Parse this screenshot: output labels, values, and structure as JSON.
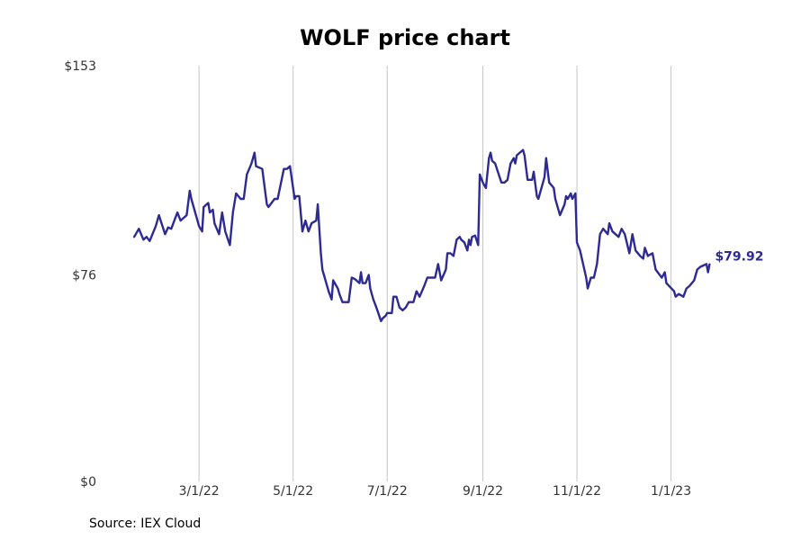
{
  "chart_data": {
    "type": "line",
    "title": "WOLF price chart",
    "ylim": [
      0,
      153
    ],
    "y_ticks": [
      0,
      76,
      153
    ],
    "y_tick_labels": [
      "$0",
      "$76",
      "$153"
    ],
    "x_tick_dates": [
      "2022-03-01",
      "2022-05-01",
      "2022-07-01",
      "2022-09-01",
      "2022-11-01",
      "2023-01-01"
    ],
    "x_tick_labels": [
      "3/1/22",
      "5/1/22",
      "7/1/22",
      "9/1/22",
      "11/1/22",
      "1/1/23"
    ],
    "xlim": [
      "2022-01-01",
      "2023-02-28"
    ],
    "grid": "vertical",
    "line_color": "#2e2a94",
    "last_value_label": "$79.92",
    "series": [
      {
        "values": [
          [
            "2022-01-18",
            90.0
          ],
          [
            "2022-01-21",
            93.0
          ],
          [
            "2022-01-24",
            89.0
          ],
          [
            "2022-01-26",
            90.0
          ],
          [
            "2022-01-28",
            88.5
          ],
          [
            "2022-02-01",
            94.0
          ],
          [
            "2022-02-03",
            98.0
          ],
          [
            "2022-02-07",
            91.0
          ],
          [
            "2022-02-09",
            93.5
          ],
          [
            "2022-02-11",
            93.0
          ],
          [
            "2022-02-15",
            99.0
          ],
          [
            "2022-02-17",
            96.0
          ],
          [
            "2022-02-21",
            98.0
          ],
          [
            "2022-02-23",
            107.0
          ],
          [
            "2022-02-24",
            104.0
          ],
          [
            "2022-02-28",
            96.0
          ],
          [
            "2022-03-01",
            94.0
          ],
          [
            "2022-03-03",
            92.0
          ],
          [
            "2022-03-04",
            101.0
          ],
          [
            "2022-03-07",
            102.5
          ],
          [
            "2022-03-08",
            99.0
          ],
          [
            "2022-03-10",
            100.0
          ],
          [
            "2022-03-11",
            95.0
          ],
          [
            "2022-03-14",
            91.0
          ],
          [
            "2022-03-16",
            99.0
          ],
          [
            "2022-03-18",
            92.0
          ],
          [
            "2022-03-21",
            87.0
          ],
          [
            "2022-03-23",
            99.0
          ],
          [
            "2022-03-25",
            106.0
          ],
          [
            "2022-03-28",
            104.0
          ],
          [
            "2022-03-30",
            104.0
          ],
          [
            "2022-04-01",
            113.0
          ],
          [
            "2022-04-04",
            117.0
          ],
          [
            "2022-04-06",
            121.0
          ],
          [
            "2022-04-07",
            116.0
          ],
          [
            "2022-04-11",
            115.0
          ],
          [
            "2022-04-14",
            102.0
          ],
          [
            "2022-04-15",
            101.0
          ],
          [
            "2022-04-19",
            104.0
          ],
          [
            "2022-04-21",
            104.0
          ],
          [
            "2022-04-25",
            115.0
          ],
          [
            "2022-04-27",
            115.0
          ],
          [
            "2022-04-29",
            116.0
          ],
          [
            "2022-05-02",
            104.0
          ],
          [
            "2022-05-03",
            105.0
          ],
          [
            "2022-05-05",
            105.0
          ],
          [
            "2022-05-07",
            92.0
          ],
          [
            "2022-05-09",
            96.0
          ],
          [
            "2022-05-11",
            92.0
          ],
          [
            "2022-05-13",
            95.0
          ],
          [
            "2022-05-16",
            96.0
          ],
          [
            "2022-05-17",
            102.0
          ],
          [
            "2022-05-19",
            84.0
          ],
          [
            "2022-05-20",
            78.0
          ],
          [
            "2022-05-24",
            70.0
          ],
          [
            "2022-05-26",
            67.0
          ],
          [
            "2022-05-27",
            74.0
          ],
          [
            "2022-05-30",
            71.0
          ],
          [
            "2022-05-31",
            69.0
          ],
          [
            "2022-06-02",
            66.0
          ],
          [
            "2022-06-06",
            66.0
          ],
          [
            "2022-06-08",
            75.0
          ],
          [
            "2022-06-10",
            74.5
          ],
          [
            "2022-06-13",
            73.0
          ],
          [
            "2022-06-14",
            77.0
          ],
          [
            "2022-06-15",
            73.0
          ],
          [
            "2022-06-17",
            73.0
          ],
          [
            "2022-06-19",
            76.0
          ],
          [
            "2022-06-20",
            71.0
          ],
          [
            "2022-06-22",
            67.0
          ],
          [
            "2022-06-24",
            64.0
          ],
          [
            "2022-06-27",
            59.0
          ],
          [
            "2022-06-28",
            60.0
          ],
          [
            "2022-06-30",
            61.0
          ],
          [
            "2022-07-01",
            62.0
          ],
          [
            "2022-07-04",
            62.0
          ],
          [
            "2022-07-05",
            68.0
          ],
          [
            "2022-07-07",
            68.0
          ],
          [
            "2022-07-09",
            64.0
          ],
          [
            "2022-07-11",
            63.0
          ],
          [
            "2022-07-13",
            64.0
          ],
          [
            "2022-07-15",
            66.0
          ],
          [
            "2022-07-18",
            66.0
          ],
          [
            "2022-07-20",
            70.0
          ],
          [
            "2022-07-22",
            68.0
          ],
          [
            "2022-07-25",
            72.0
          ],
          [
            "2022-07-27",
            75.0
          ],
          [
            "2022-07-29",
            75.0
          ],
          [
            "2022-08-01",
            75.0
          ],
          [
            "2022-08-03",
            80.0
          ],
          [
            "2022-08-05",
            74.0
          ],
          [
            "2022-08-08",
            78.0
          ],
          [
            "2022-08-09",
            84.0
          ],
          [
            "2022-08-11",
            84.0
          ],
          [
            "2022-08-13",
            83.0
          ],
          [
            "2022-08-15",
            89.0
          ],
          [
            "2022-08-17",
            90.0
          ],
          [
            "2022-08-18",
            89.0
          ],
          [
            "2022-08-20",
            88.0
          ],
          [
            "2022-08-22",
            85.0
          ],
          [
            "2022-08-23",
            89.0
          ],
          [
            "2022-08-24",
            87.0
          ],
          [
            "2022-08-25",
            90.0
          ],
          [
            "2022-08-27",
            90.5
          ],
          [
            "2022-08-29",
            87.0
          ],
          [
            "2022-08-30",
            113.0
          ],
          [
            "2022-09-01",
            110.0
          ],
          [
            "2022-09-03",
            108.0
          ],
          [
            "2022-09-05",
            119.0
          ],
          [
            "2022-09-06",
            121.0
          ],
          [
            "2022-09-07",
            118.0
          ],
          [
            "2022-09-09",
            117.0
          ],
          [
            "2022-09-13",
            110.0
          ],
          [
            "2022-09-15",
            110.0
          ],
          [
            "2022-09-17",
            111.0
          ],
          [
            "2022-09-19",
            117.0
          ],
          [
            "2022-09-21",
            119.0
          ],
          [
            "2022-09-22",
            117.0
          ],
          [
            "2022-09-23",
            120.0
          ],
          [
            "2022-09-25",
            121.0
          ],
          [
            "2022-09-27",
            122.0
          ],
          [
            "2022-09-28",
            120.0
          ],
          [
            "2022-09-30",
            111.0
          ],
          [
            "2022-10-03",
            111.0
          ],
          [
            "2022-10-04",
            114.0
          ],
          [
            "2022-10-06",
            105.0
          ],
          [
            "2022-10-07",
            104.0
          ],
          [
            "2022-10-11",
            112.0
          ],
          [
            "2022-10-12",
            119.0
          ],
          [
            "2022-10-14",
            110.0
          ],
          [
            "2022-10-17",
            108.0
          ],
          [
            "2022-10-18",
            104.0
          ],
          [
            "2022-10-21",
            98.0
          ],
          [
            "2022-10-24",
            102.0
          ],
          [
            "2022-10-25",
            105.0
          ],
          [
            "2022-10-26",
            104.0
          ],
          [
            "2022-10-28",
            106.0
          ],
          [
            "2022-10-29",
            104.0
          ],
          [
            "2022-10-31",
            106.0
          ],
          [
            "2022-11-01",
            88.0
          ],
          [
            "2022-11-03",
            85.0
          ],
          [
            "2022-11-07",
            75.0
          ],
          [
            "2022-11-08",
            71.0
          ],
          [
            "2022-11-10",
            75.0
          ],
          [
            "2022-11-12",
            75.0
          ],
          [
            "2022-11-14",
            80.0
          ],
          [
            "2022-11-16",
            91.0
          ],
          [
            "2022-11-18",
            93.0
          ],
          [
            "2022-11-21",
            91.0
          ],
          [
            "2022-11-22",
            95.0
          ],
          [
            "2022-11-24",
            92.0
          ],
          [
            "2022-11-28",
            90.0
          ],
          [
            "2022-11-30",
            93.0
          ],
          [
            "2022-12-02",
            91.0
          ],
          [
            "2022-12-05",
            84.0
          ],
          [
            "2022-12-07",
            91.0
          ],
          [
            "2022-12-09",
            85.0
          ],
          [
            "2022-12-12",
            83.0
          ],
          [
            "2022-12-14",
            82.0
          ],
          [
            "2022-12-15",
            86.0
          ],
          [
            "2022-12-17",
            83.0
          ],
          [
            "2022-12-20",
            84.0
          ],
          [
            "2022-12-22",
            78.0
          ],
          [
            "2022-12-26",
            75.0
          ],
          [
            "2022-12-28",
            77.0
          ],
          [
            "2022-12-29",
            73.0
          ],
          [
            "2023-01-03",
            70.0
          ],
          [
            "2023-01-04",
            68.0
          ],
          [
            "2023-01-06",
            69.0
          ],
          [
            "2023-01-09",
            68.0
          ],
          [
            "2023-01-11",
            71.0
          ],
          [
            "2023-01-13",
            72.0
          ],
          [
            "2023-01-16",
            74.0
          ],
          [
            "2023-01-18",
            78.0
          ],
          [
            "2023-01-20",
            79.0
          ],
          [
            "2023-01-24",
            80.0
          ],
          [
            "2023-01-25",
            77.0
          ],
          [
            "2023-01-26",
            79.92
          ]
        ]
      }
    ]
  },
  "source": "Source: IEX Cloud"
}
